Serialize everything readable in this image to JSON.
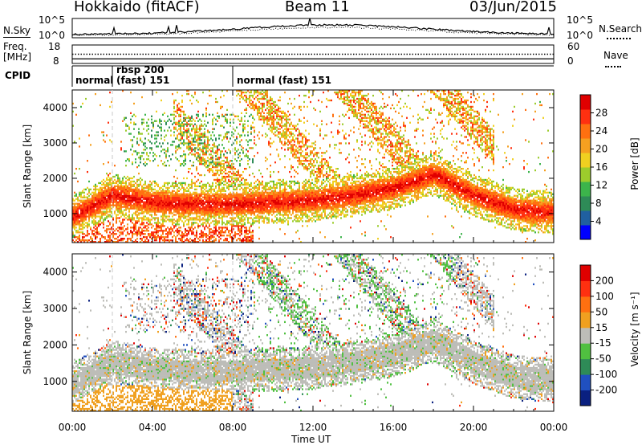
{
  "header": {
    "radar": "Hokkaido (fitACF)",
    "beam": "Beam 11",
    "date": "03/Jun/2015"
  },
  "nsky_panel": {
    "left_label": "N.Sky",
    "left_ticks": [
      "10^5",
      "10^0"
    ],
    "right_label": "N.Search",
    "right_ticks": [
      "10^5",
      "10^0"
    ]
  },
  "freq_panel": {
    "left_label_line1": "Freq.",
    "left_label_line2": "[MHz]",
    "left_ticks": [
      "18",
      "8"
    ],
    "right_label": "Nave",
    "right_ticks": [
      "60",
      "0"
    ]
  },
  "cpid_panel": {
    "label": "CPID",
    "segments": [
      {
        "start": "00:00",
        "end": "02:00",
        "text_lines": [
          "normal"
        ]
      },
      {
        "start": "02:00",
        "end": "08:00",
        "text_lines": [
          "rbsp 200",
          "(fast) 151"
        ]
      },
      {
        "start": "08:00",
        "end": "24:00",
        "text_lines": [
          "normal (fast) 151"
        ]
      }
    ]
  },
  "x_axis": {
    "label": "Time UT",
    "ticks": [
      "00:00",
      "04:00",
      "08:00",
      "12:00",
      "16:00",
      "20:00",
      "00:00"
    ]
  },
  "power_panel": {
    "ylabel": "Slant Range [km]",
    "yticks": [
      "1000",
      "2000",
      "3000",
      "4000"
    ],
    "colorbar_label": "Power [dB]",
    "colorbar_ticks": [
      "28",
      "24",
      "20",
      "16",
      "12",
      "8",
      "4"
    ],
    "colors": [
      "#0000ff",
      "#2060a0",
      "#2e8b57",
      "#3cb44b",
      "#9ccc2c",
      "#f0d020",
      "#f5a020",
      "#ff7010",
      "#ff3010",
      "#e00000"
    ]
  },
  "velocity_panel": {
    "ylabel": "Slant Range [km]",
    "yticks": [
      "1000",
      "2000",
      "3000",
      "4000"
    ],
    "colorbar_label": "Velocity [m s⁻¹]",
    "colorbar_ticks": [
      "200",
      "100",
      "50",
      "15",
      "-15",
      "-50",
      "-100",
      "-200"
    ],
    "colors": [
      "#0a2080",
      "#2050c0",
      "#2e8b57",
      "#50c040",
      "#bdbdb8",
      "#f0a020",
      "#ff7010",
      "#ff3010",
      "#e00000"
    ]
  },
  "chart_data": {
    "type": "heatmap",
    "x": [
      "00:00",
      "02:00",
      "04:00",
      "06:00",
      "08:00",
      "10:00",
      "12:00",
      "14:00",
      "16:00",
      "18:00",
      "20:00",
      "22:00",
      "24:00"
    ],
    "xlabel": "Time UT",
    "ylabel": "Slant Range [km]",
    "ylim": [
      180,
      4500
    ],
    "series": [
      {
        "name": "Power [dB]",
        "vlim": [
          0,
          30
        ],
        "main_echo_band_range_km": [
          900,
          1500,
          1300,
          1250,
          1250,
          1300,
          1350,
          1500,
          1700,
          2100,
          1500,
          1100,
          1000
        ]
      },
      {
        "name": "Velocity [m s-1]",
        "vlim": [
          -200,
          200
        ],
        "main_echo_band_range_km": [
          900,
          1500,
          1300,
          1250,
          1250,
          1300,
          1350,
          1500,
          1700,
          2100,
          1500,
          1100,
          1000
        ]
      }
    ],
    "frequency_mhz": 10.5,
    "nave": 30,
    "markers_ut": [
      "02:00",
      "08:00"
    ],
    "grid": false
  }
}
